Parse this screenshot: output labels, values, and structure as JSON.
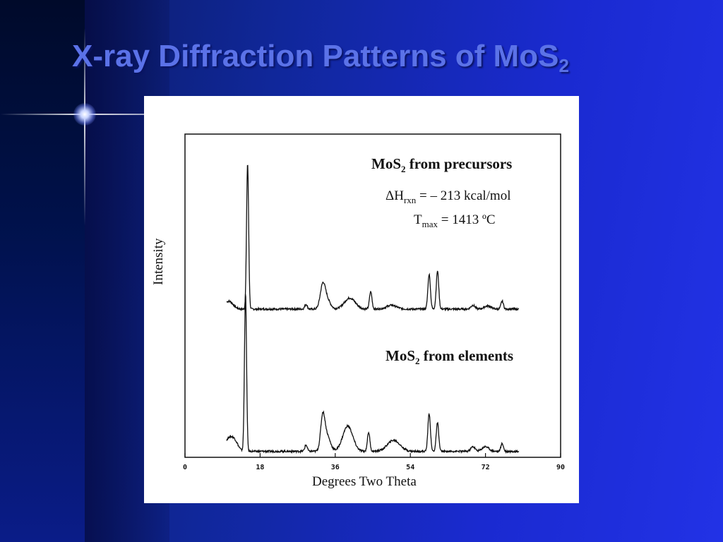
{
  "slide": {
    "title_main": "X-ray Diffraction Patterns of MoS",
    "title_sub": "2",
    "accent_color": "#5b72e8"
  },
  "chart_data": {
    "type": "line",
    "xlabel": "Degrees Two Theta",
    "ylabel": "Intensity",
    "xlim": [
      0,
      90
    ],
    "xticks": [
      0,
      18,
      36,
      54,
      72,
      90
    ],
    "ylim": [
      0,
      100
    ],
    "grid": false,
    "annotations": {
      "precursors_title_a": "MoS",
      "precursors_title_sub": "2",
      "precursors_title_b": " from precursors",
      "dh_a": "ΔH",
      "dh_sub": "rxn",
      "dh_b": " = – 213 kcal/mol",
      "tmax_a": "T",
      "tmax_sub": "max",
      "tmax_b": " = 1413 ºC",
      "elements_title_a": "MoS",
      "elements_title_sub": "2",
      "elements_title_b": " from elements"
    },
    "series": [
      {
        "name": "MoS2 from precursors",
        "baseline": 46,
        "peaks": [
          {
            "x": 10.5,
            "h": 2.5,
            "w": 1.0
          },
          {
            "x": 15.0,
            "h": 46,
            "w": 0.25
          },
          {
            "x": 29.0,
            "h": 1.5,
            "w": 0.3
          },
          {
            "x": 33.0,
            "h": 7,
            "w": 0.6
          },
          {
            "x": 34.0,
            "h": 3,
            "w": 0.8
          },
          {
            "x": 39.5,
            "h": 3.5,
            "w": 1.3
          },
          {
            "x": 44.5,
            "h": 5.5,
            "w": 0.3
          },
          {
            "x": 49.5,
            "h": 1.2,
            "w": 1.2
          },
          {
            "x": 58.5,
            "h": 11,
            "w": 0.3
          },
          {
            "x": 60.5,
            "h": 12,
            "w": 0.3
          },
          {
            "x": 69.0,
            "h": 1.2,
            "w": 0.5
          },
          {
            "x": 72.5,
            "h": 1.0,
            "w": 0.8
          },
          {
            "x": 76.0,
            "h": 2.5,
            "w": 0.3
          }
        ],
        "x_range": [
          10,
          80
        ]
      },
      {
        "name": "MoS2 from elements",
        "baseline": 1,
        "peaks": [
          {
            "x": 10.5,
            "h": 4,
            "w": 1.0
          },
          {
            "x": 12.0,
            "h": 2.5,
            "w": 0.8
          },
          {
            "x": 14.5,
            "h": 50,
            "w": 0.25
          },
          {
            "x": 29.0,
            "h": 2,
            "w": 0.3
          },
          {
            "x": 33.0,
            "h": 10,
            "w": 0.5
          },
          {
            "x": 34.0,
            "h": 5,
            "w": 0.8
          },
          {
            "x": 39.0,
            "h": 8,
            "w": 1.2
          },
          {
            "x": 44.0,
            "h": 6,
            "w": 0.3
          },
          {
            "x": 50.0,
            "h": 3.5,
            "w": 1.5
          },
          {
            "x": 58.5,
            "h": 12,
            "w": 0.3
          },
          {
            "x": 60.5,
            "h": 9,
            "w": 0.3
          },
          {
            "x": 69.0,
            "h": 1.5,
            "w": 0.5
          },
          {
            "x": 72.0,
            "h": 1.5,
            "w": 0.8
          },
          {
            "x": 76.0,
            "h": 2.5,
            "w": 0.3
          }
        ],
        "x_range": [
          10,
          80
        ]
      }
    ]
  }
}
